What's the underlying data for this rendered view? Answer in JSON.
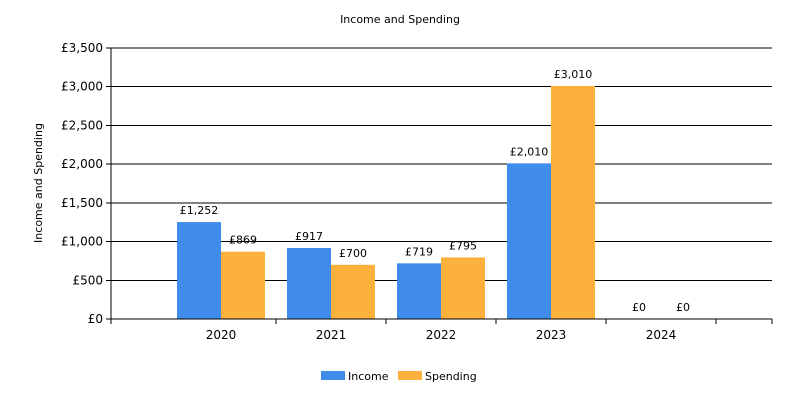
{
  "chart_data": {
    "type": "bar",
    "title": "Income and Spending",
    "ylabel": "Income and Spending",
    "xlabel": "",
    "categories": [
      "2020",
      "2021",
      "2022",
      "2023",
      "2024"
    ],
    "series": [
      {
        "name": "Income",
        "color": "#3f8ceb",
        "values": [
          1252,
          917,
          719,
          2010,
          0
        ],
        "labels": [
          "£1,252",
          "£917",
          "£719",
          "£2,010",
          "£0"
        ]
      },
      {
        "name": "Spending",
        "color": "#fbb13c",
        "values": [
          869,
          700,
          795,
          3010,
          0
        ],
        "labels": [
          "£869",
          "£700",
          "£795",
          "£3,010",
          "£0"
        ]
      }
    ],
    "ylim": [
      0,
      3500
    ],
    "yticks": [
      0,
      500,
      1000,
      1500,
      2000,
      2500,
      3000,
      3500
    ],
    "ytick_labels": [
      "£0",
      "£500",
      "£1,000",
      "£1,500",
      "£2,000",
      "£2,500",
      "£3,000",
      "£3,500"
    ],
    "grid": "horizontal",
    "legend_position": "bottom-center"
  }
}
